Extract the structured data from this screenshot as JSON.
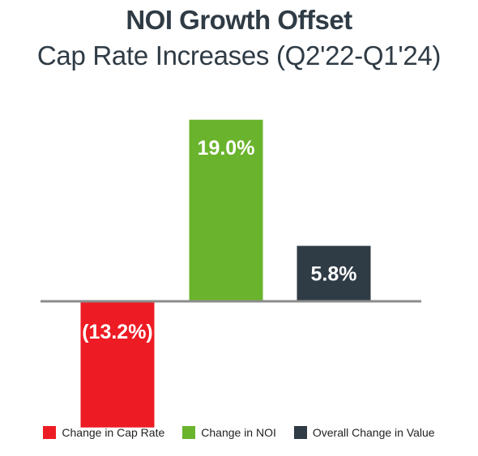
{
  "title": "NOI Growth Offset",
  "subtitle": "Cap Rate Increases (Q2'22-Q1'24)",
  "chart_data": {
    "type": "bar",
    "title": "NOI Growth Offset",
    "subtitle": "Cap Rate Increases (Q2'22-Q1'24)",
    "categories": [
      "Change in Cap Rate",
      "Change in NOI",
      "Overall Change in Value"
    ],
    "values": [
      -13.2,
      19.0,
      5.8
    ],
    "data_labels": [
      "(13.2%)",
      "19.0%",
      "5.8%"
    ],
    "colors": [
      "#ed1c24",
      "#6ab42d",
      "#2f3b45"
    ],
    "ylim": [
      -20,
      21
    ],
    "xlabel": "",
    "ylabel": "",
    "grid": false,
    "legend": "bottom"
  }
}
